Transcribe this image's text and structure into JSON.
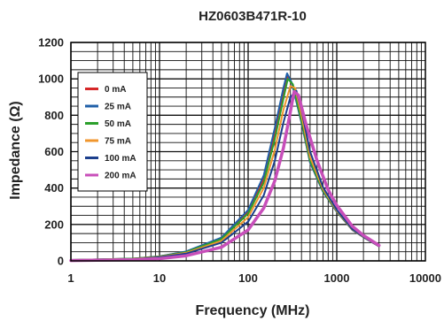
{
  "chart_data": {
    "type": "line",
    "title": "HZ0603B471R-10",
    "xlabel": "Frequency (MHz)",
    "ylabel": "Impedance (Ω)",
    "x_scale": "log",
    "xlim": [
      1,
      10000
    ],
    "ylim": [
      0,
      1200
    ],
    "x_ticks": [
      "1",
      "10",
      "100",
      "1000",
      "10000"
    ],
    "y_ticks": [
      "0",
      "200",
      "400",
      "600",
      "800",
      "1000",
      "1200"
    ],
    "grid": true,
    "legend_position": "top-left",
    "series": [
      {
        "name": "0 mA",
        "color": "#d62728",
        "x": [
          1,
          5,
          10,
          20,
          50,
          100,
          150,
          200,
          250,
          280,
          320,
          400,
          500,
          700,
          1000,
          1500,
          2000,
          3000
        ],
        "y": [
          5,
          12,
          25,
          50,
          125,
          270,
          450,
          700,
          920,
          1020,
          960,
          760,
          540,
          380,
          270,
          170,
          130,
          80
        ]
      },
      {
        "name": "25 mA",
        "color": "#1f5fa8",
        "x": [
          1,
          5,
          10,
          20,
          50,
          100,
          150,
          200,
          250,
          275,
          310,
          400,
          500,
          700,
          1000,
          1500,
          2000,
          3000
        ],
        "y": [
          5,
          12,
          25,
          52,
          128,
          280,
          470,
          730,
          950,
          1030,
          980,
          760,
          540,
          380,
          270,
          170,
          130,
          80
        ]
      },
      {
        "name": "50 mA",
        "color": "#2ca02c",
        "x": [
          1,
          5,
          10,
          20,
          50,
          100,
          150,
          200,
          250,
          280,
          320,
          400,
          500,
          700,
          1000,
          1500,
          2000,
          3000
        ],
        "y": [
          5,
          12,
          24,
          48,
          120,
          260,
          430,
          670,
          890,
          1000,
          970,
          770,
          550,
          385,
          272,
          172,
          131,
          80
        ]
      },
      {
        "name": "75 mA",
        "color": "#f0962d",
        "x": [
          1,
          5,
          10,
          20,
          50,
          100,
          150,
          200,
          250,
          300,
          340,
          400,
          500,
          700,
          1000,
          1500,
          2000,
          3000
        ],
        "y": [
          4,
          10,
          22,
          44,
          110,
          240,
          400,
          610,
          830,
          960,
          950,
          800,
          570,
          395,
          275,
          173,
          132,
          80
        ]
      },
      {
        "name": "100 mA",
        "color": "#1c3f8c",
        "x": [
          1,
          5,
          10,
          20,
          50,
          100,
          150,
          200,
          250,
          300,
          350,
          400,
          500,
          700,
          1000,
          1500,
          2000,
          3000
        ],
        "y": [
          4,
          9,
          20,
          40,
          100,
          215,
          360,
          550,
          760,
          900,
          935,
          830,
          600,
          405,
          280,
          175,
          133,
          80
        ]
      },
      {
        "name": "200 mA",
        "color": "#c84fba",
        "x": [
          1,
          5,
          10,
          20,
          50,
          100,
          150,
          200,
          250,
          300,
          330,
          370,
          450,
          600,
          800,
          1000,
          1500,
          2000,
          3000
        ],
        "y": [
          2,
          6,
          12,
          28,
          75,
          170,
          290,
          440,
          620,
          820,
          930,
          910,
          750,
          550,
          390,
          305,
          190,
          140,
          85
        ]
      }
    ]
  }
}
